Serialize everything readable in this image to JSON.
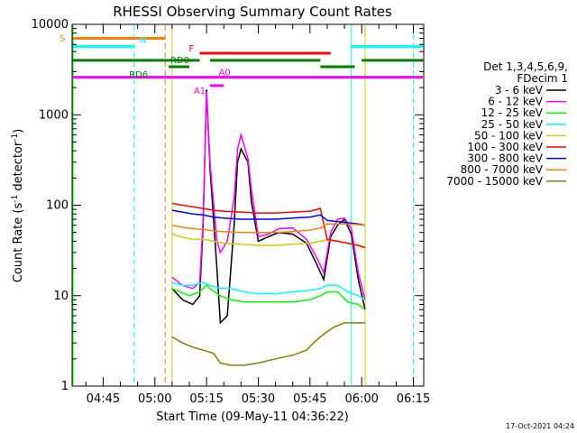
{
  "chart_data": {
    "type": "line",
    "title": "RHESSI Observing Summary Count Rates",
    "xlabel": "Start Time (09-May-11 04:36:22)",
    "ylabel_main": "Count Rate (s",
    "ylabel_sup1": "-1",
    "ylabel_mid": " detector",
    "ylabel_sup2": "-1",
    "ylabel_end": ")",
    "xlim": [
      "04:36",
      "06:18"
    ],
    "ylim": [
      1,
      10000
    ],
    "yscale": "log",
    "grid": false,
    "x_ticks": [
      "04:45",
      "05:00",
      "05:15",
      "05:30",
      "05:45",
      "06:00",
      "06:15"
    ],
    "y_ticks": [
      "1",
      "10",
      "100",
      "1000",
      "10000"
    ],
    "legend_title": [
      "Det 1,3,4,5,6,9,",
      "FDecim 1"
    ],
    "legend_placement": "right",
    "series": [
      {
        "name": "3 - 6 keV",
        "color": "#000000",
        "x": [
          "05:05",
          "05:08",
          "05:11",
          "05:13",
          "05:14",
          "05:15",
          "05:16",
          "05:18",
          "05:19",
          "05:21",
          "05:23",
          "05:24",
          "05:25",
          "05:27",
          "05:28",
          "05:30",
          "05:33",
          "05:36",
          "05:40",
          "05:44",
          "05:47",
          "05:49",
          "05:51",
          "05:53",
          "05:55",
          "05:57",
          "05:59",
          "06:01"
        ],
        "values": [
          12,
          9,
          8,
          10,
          60,
          1900,
          260,
          20,
          5,
          6,
          60,
          300,
          420,
          300,
          110,
          40,
          45,
          50,
          48,
          38,
          22,
          15,
          45,
          60,
          70,
          48,
          15,
          7
        ]
      },
      {
        "name": "6 - 12 keV",
        "color": "#ff00ff",
        "x": [
          "05:05",
          "05:08",
          "05:11",
          "05:13",
          "05:14",
          "05:15",
          "05:16",
          "05:18",
          "05:19",
          "05:21",
          "05:23",
          "05:24",
          "05:25",
          "05:27",
          "05:28",
          "05:30",
          "05:33",
          "05:36",
          "05:40",
          "05:44",
          "05:47",
          "05:49",
          "05:51",
          "05:53",
          "05:55",
          "05:57",
          "05:59",
          "06:01"
        ],
        "values": [
          16,
          13,
          12,
          14,
          70,
          1800,
          300,
          40,
          30,
          40,
          120,
          420,
          600,
          330,
          150,
          45,
          48,
          55,
          56,
          42,
          26,
          18,
          50,
          70,
          72,
          55,
          18,
          9
        ]
      },
      {
        "name": "12 - 25 keV",
        "color": "#00ff00",
        "x": [
          "05:05",
          "05:10",
          "05:13",
          "05:15",
          "05:16",
          "05:19",
          "05:22",
          "05:26",
          "05:30",
          "05:35",
          "05:40",
          "05:45",
          "05:48",
          "05:50",
          "05:53",
          "05:56",
          "05:59",
          "06:01"
        ],
        "values": [
          12,
          10,
          11,
          13,
          12,
          10,
          9,
          8.5,
          8.5,
          8.5,
          8.5,
          9,
          10,
          11,
          11,
          8.5,
          8,
          7
        ]
      },
      {
        "name": "25 - 50 keV",
        "color": "#00ffff",
        "x": [
          "05:05",
          "05:08",
          "05:11",
          "05:14",
          "05:16",
          "05:19",
          "05:22",
          "05:26",
          "05:30",
          "05:35",
          "05:40",
          "05:45",
          "05:48",
          "05:50",
          "05:53",
          "05:56",
          "05:59",
          "06:01"
        ],
        "values": [
          14,
          13,
          13,
          14,
          13,
          12,
          12,
          11,
          10.5,
          10.5,
          11,
          11.5,
          12,
          13,
          13,
          11,
          10,
          9
        ]
      },
      {
        "name": "50 - 100 keV",
        "color": "#cccc00",
        "x": [
          "05:05",
          "05:08",
          "05:11",
          "05:14",
          "05:17",
          "05:20",
          "05:25",
          "05:30",
          "05:35",
          "05:40",
          "05:45",
          "05:48",
          "05:50",
          "05:53",
          "05:56",
          "05:59",
          "06:01"
        ],
        "values": [
          48,
          44,
          42,
          42,
          40,
          38,
          37,
          36,
          36,
          37,
          38,
          40,
          41,
          40,
          38,
          36,
          34
        ]
      },
      {
        "name": "100 - 300 keV",
        "color": "#ff0000",
        "x": [
          "05:05",
          "05:08",
          "05:11",
          "05:14",
          "05:17",
          "05:20",
          "05:25",
          "05:30",
          "05:35",
          "05:40",
          "05:45",
          "05:48",
          "05:50",
          "05:53",
          "05:56",
          "05:59",
          "06:01"
        ],
        "values": [
          105,
          100,
          96,
          92,
          88,
          86,
          84,
          82,
          82,
          84,
          86,
          92,
          42,
          40,
          38,
          36,
          34
        ]
      },
      {
        "name": "300 - 800 keV",
        "color": "#0000ff",
        "x": [
          "05:05",
          "05:08",
          "05:11",
          "05:14",
          "05:17",
          "05:20",
          "05:25",
          "05:30",
          "05:35",
          "05:40",
          "05:45",
          "05:48",
          "05:50",
          "05:53",
          "05:56",
          "05:59",
          "06:01"
        ],
        "values": [
          88,
          84,
          80,
          78,
          74,
          72,
          70,
          70,
          70,
          72,
          74,
          78,
          68,
          66,
          64,
          62,
          60
        ]
      },
      {
        "name": "800 - 7000 keV",
        "color": "#ff8000",
        "x": [
          "05:05",
          "05:08",
          "05:11",
          "05:14",
          "05:17",
          "05:20",
          "05:25",
          "05:30",
          "05:35",
          "05:40",
          "05:45",
          "05:48",
          "05:50",
          "05:53",
          "05:56",
          "05:59",
          "06:01"
        ],
        "values": [
          60,
          57,
          55,
          54,
          52,
          51,
          50,
          50,
          50,
          51,
          53,
          56,
          62,
          62,
          62,
          61,
          60
        ]
      },
      {
        "name": "7000 - 15000 keV",
        "color": "#808000",
        "x": [
          "05:05",
          "05:08",
          "05:11",
          "05:14",
          "05:17",
          "05:19",
          "05:22",
          "05:26",
          "05:30",
          "05:35",
          "05:40",
          "05:44",
          "05:46",
          "05:48",
          "05:50",
          "05:52",
          "05:55",
          "05:59",
          "06:01"
        ],
        "values": [
          3.5,
          3.0,
          2.7,
          2.5,
          2.3,
          1.8,
          1.7,
          1.7,
          1.8,
          2.0,
          2.2,
          2.5,
          3.0,
          3.5,
          4.0,
          4.5,
          5.0,
          5.0,
          5.0
        ]
      }
    ],
    "flag_lines": [
      {
        "label": "S",
        "color": "#ff8000",
        "level": 7000,
        "segments": [
          [
            "04:36",
            "05:03"
          ]
        ]
      },
      {
        "label": "N",
        "color": "#00ffff",
        "level": 5700,
        "segments": [
          [
            "04:36",
            "04:54"
          ],
          [
            "05:57",
            "06:18"
          ]
        ]
      },
      {
        "label": "F",
        "color": "#ff0000",
        "level": 4800,
        "segments": [
          [
            "05:13",
            "05:51"
          ]
        ]
      },
      {
        "label": "RD0",
        "color": "#008000",
        "level": 4000,
        "segments": [
          [
            "04:36",
            "05:13"
          ],
          [
            "05:16",
            "05:48"
          ],
          [
            "06:00",
            "06:18"
          ]
        ]
      },
      {
        "label": "RD6",
        "color": "#008000",
        "level": 3400,
        "segments": [
          [
            "05:04",
            "05:10"
          ],
          [
            "05:48",
            "05:58"
          ]
        ]
      },
      {
        "label": "A0",
        "color": "#ff00ff",
        "level": 2600,
        "segments": [
          [
            "04:36",
            "06:18"
          ]
        ]
      },
      {
        "label": "A1",
        "color": "#ff00ff",
        "level": 2100,
        "segments": [
          [
            "05:16",
            "05:20"
          ]
        ]
      }
    ],
    "vertical_lines": [
      {
        "color": "#00ffff",
        "x": "04:54",
        "style": "dashed"
      },
      {
        "color": "#ff8000",
        "x": "05:03",
        "style": "dashed"
      },
      {
        "color": "#cccc00",
        "x": "05:05",
        "style": "solid"
      },
      {
        "color": "#00ffff",
        "x": "05:57",
        "style": "solid"
      },
      {
        "color": "#cccc00",
        "x": "06:01",
        "style": "solid"
      },
      {
        "color": "#00ffff",
        "x": "06:15",
        "style": "dashed"
      }
    ],
    "edge_lines": [
      {
        "color": "#00ff00",
        "x": "04:36"
      }
    ]
  },
  "footer": {
    "timestamp": "17-Oct-2021 04:24"
  }
}
